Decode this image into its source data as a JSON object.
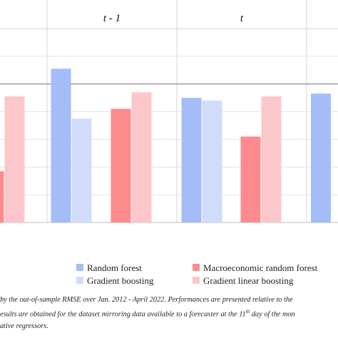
{
  "chart_data": {
    "type": "bar",
    "panels": [
      {
        "title": "",
        "categories": [
          "",
          ""
        ]
      },
      {
        "title": "t - 1",
        "categories": [
          "",
          ""
        ]
      },
      {
        "title": "t",
        "categories": [
          "",
          ""
        ]
      },
      {
        "title": "",
        "categories": [
          ""
        ]
      }
    ],
    "series": [
      {
        "name": "Random forest",
        "color": "#a4bdf9",
        "values": [
          null,
          null,
          1.11,
          null,
          0.9,
          null,
          0.93
        ]
      },
      {
        "name": "Gradient boosting",
        "color": "#d0ddfa",
        "values": [
          null,
          null,
          0.75,
          null,
          0.88,
          null,
          null
        ]
      },
      {
        "name": "Macroeconomic random forest",
        "color": "#fd8b8e",
        "values": [
          null,
          0.37,
          null,
          0.82,
          null,
          0.62,
          null
        ]
      },
      {
        "name": "Gradient linear boosting",
        "color": "#fcc7cb",
        "values": [
          null,
          0.91,
          null,
          0.94,
          null,
          0.91,
          null
        ]
      }
    ],
    "reference_line": 1.0,
    "ylim": [
      0,
      1.4
    ],
    "grid": true,
    "legend_position": "bottom"
  },
  "caption": {
    "line1": "by the out-of-sample RMSE over Jan. 2012 - April 2022. Performances are presented relative to the",
    "line2_pre": "esults are obtained for the dataset mirroring data available to a forecaster at the 11",
    "line2_sup": "th",
    "line2_post": " day of the mon",
    "line3": "ative regressors."
  }
}
